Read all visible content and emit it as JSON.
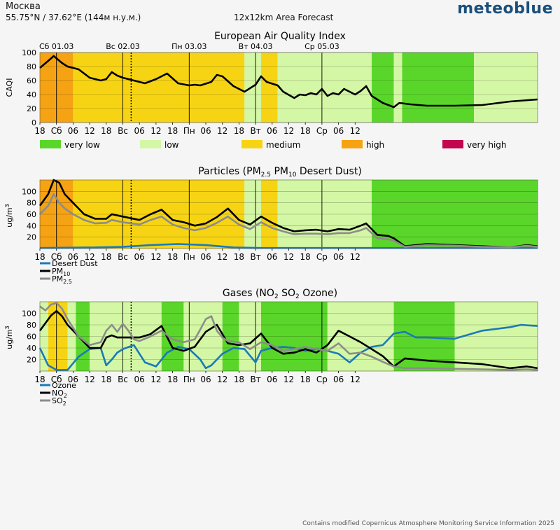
{
  "header": {
    "location": "Москва",
    "coords_prefix": "55.75°N / 37.62°E (144м н.у.м.)",
    "forecast_label": "12x12km Area Forecast",
    "logo": "meteoblue"
  },
  "footer": {
    "credit": "Contains modified Copernicus Atmosphere Monitoring Service Information 2025"
  },
  "colors": {
    "very_low": "#5ad62a",
    "low": "#d4f7a5",
    "medium": "#f7d413",
    "high": "#f5a312",
    "very_high": "#c2064f",
    "black": "#000000",
    "grey": "#8c8c8c",
    "blue": "#1a7ab8"
  },
  "x_axis": {
    "tick_labels": [
      "18",
      "Сб",
      "06",
      "12",
      "18",
      "Вс",
      "06",
      "12",
      "18",
      "Пн",
      "06",
      "12",
      "18",
      "Вт",
      "06",
      "12",
      "18",
      "Ср",
      "06",
      "12"
    ],
    "day_labels": [
      "Сб 01.03",
      "Вс 02.03",
      "Пн 03.03",
      "Вт 04.03",
      "Ср 05.03"
    ],
    "now_hour": 33
  },
  "chart_data": [
    {
      "type": "line",
      "title": "European Air Quality Index",
      "ylabel": "CAQI",
      "ylim": [
        0,
        100
      ],
      "yticks": [
        0,
        20,
        40,
        60,
        80,
        100
      ],
      "background_bands": [
        {
          "from": 0,
          "to": 12,
          "level": "high"
        },
        {
          "from": 12,
          "to": 74,
          "level": "medium"
        },
        {
          "from": 74,
          "to": 80,
          "level": "low"
        },
        {
          "from": 80,
          "to": 86,
          "level": "medium"
        },
        {
          "from": 86,
          "to": 120,
          "level": "low"
        },
        {
          "from": 120,
          "to": 128,
          "level": "very_low"
        },
        {
          "from": 128,
          "to": 131,
          "level": "low"
        },
        {
          "from": 131,
          "to": 157,
          "level": "very_low"
        },
        {
          "from": 157,
          "to": 180,
          "level": "low"
        }
      ],
      "legend": [
        {
          "label": "very low",
          "color_key": "very_low"
        },
        {
          "label": "low",
          "color_key": "low"
        },
        {
          "label": "medium",
          "color_key": "medium"
        },
        {
          "label": "high",
          "color_key": "high"
        },
        {
          "label": "very high",
          "color_key": "very_high"
        }
      ],
      "series": [
        {
          "color_key": "black",
          "x": [
            0,
            3,
            5,
            8,
            10,
            14,
            18,
            22,
            24,
            26,
            28,
            30,
            34,
            38,
            42,
            46,
            50,
            54,
            56,
            58,
            62,
            64,
            66,
            70,
            74,
            78,
            80,
            82,
            86,
            88,
            92,
            94,
            96,
            98,
            100,
            102,
            104,
            106,
            108,
            110,
            112,
            114,
            116,
            118,
            120,
            124,
            128,
            130,
            134,
            140,
            150,
            160,
            170,
            180
          ],
          "y": [
            78,
            88,
            95,
            85,
            80,
            76,
            64,
            60,
            62,
            72,
            67,
            64,
            60,
            56,
            62,
            70,
            56,
            53,
            54,
            53,
            58,
            68,
            66,
            52,
            44,
            54,
            66,
            58,
            53,
            44,
            35,
            40,
            39,
            42,
            40,
            48,
            38,
            42,
            40,
            48,
            44,
            40,
            45,
            52,
            38,
            28,
            22,
            28,
            26,
            24,
            24,
            25,
            30,
            33
          ]
        }
      ]
    },
    {
      "type": "line",
      "title": "Particles (PM2.5 PM10 Desert Dust)",
      "ylabel": "ug/m3",
      "ylim": [
        0,
        120
      ],
      "yticks": [
        20,
        40,
        60,
        80,
        100
      ],
      "background_bands": [
        {
          "from": 0,
          "to": 12,
          "level": "high"
        },
        {
          "from": 12,
          "to": 74,
          "level": "medium"
        },
        {
          "from": 74,
          "to": 80,
          "level": "low"
        },
        {
          "from": 80,
          "to": 86,
          "level": "medium"
        },
        {
          "from": 86,
          "to": 120,
          "level": "low"
        },
        {
          "from": 120,
          "to": 180,
          "level": "very_low"
        }
      ],
      "legend": [
        {
          "label": "Desert Dust",
          "color_key": "blue"
        },
        {
          "label": "PM10",
          "color_key": "black"
        },
        {
          "label": "PM2.5",
          "color_key": "grey"
        }
      ],
      "series": [
        {
          "name": "Desert Dust",
          "color_key": "blue",
          "x": [
            0,
            20,
            30,
            40,
            50,
            60,
            70,
            80,
            90,
            100,
            110,
            120,
            130,
            140,
            150,
            160,
            170,
            180
          ],
          "y": [
            1,
            2,
            3,
            6,
            8,
            6,
            2,
            1,
            1,
            1,
            1,
            1,
            1,
            1,
            1,
            1,
            1,
            1
          ]
        },
        {
          "name": "PM10",
          "color_key": "black",
          "x": [
            0,
            3,
            5,
            7,
            9,
            12,
            16,
            20,
            24,
            26,
            30,
            36,
            40,
            44,
            48,
            52,
            56,
            60,
            64,
            68,
            72,
            76,
            80,
            84,
            88,
            92,
            96,
            100,
            104,
            108,
            112,
            116,
            118,
            122,
            126,
            128,
            132,
            140,
            150,
            160,
            170,
            176,
            180
          ],
          "y": [
            75,
            95,
            125,
            115,
            95,
            80,
            60,
            52,
            52,
            60,
            56,
            50,
            60,
            68,
            50,
            46,
            40,
            44,
            55,
            70,
            50,
            42,
            56,
            45,
            36,
            30,
            32,
            33,
            30,
            34,
            33,
            40,
            44,
            24,
            22,
            18,
            4,
            8,
            6,
            4,
            2,
            6,
            4
          ]
        },
        {
          "name": "PM2.5",
          "color_key": "grey",
          "x": [
            0,
            3,
            5,
            7,
            9,
            12,
            16,
            20,
            24,
            26,
            30,
            36,
            40,
            44,
            48,
            52,
            56,
            60,
            64,
            68,
            72,
            76,
            80,
            84,
            88,
            92,
            96,
            100,
            104,
            108,
            112,
            116,
            118,
            122,
            126,
            128,
            132,
            140,
            150,
            160,
            170,
            176,
            180
          ],
          "y": [
            60,
            75,
            95,
            80,
            70,
            60,
            50,
            44,
            45,
            50,
            46,
            42,
            50,
            56,
            42,
            36,
            32,
            36,
            45,
            56,
            42,
            34,
            46,
            36,
            30,
            25,
            26,
            26,
            25,
            27,
            27,
            32,
            36,
            18,
            16,
            14,
            3,
            6,
            5,
            3,
            2,
            5,
            3
          ]
        }
      ]
    },
    {
      "type": "line",
      "title": "Gases (NO2 SO2 Ozone)",
      "ylabel": "ug/m3",
      "ylim": [
        0,
        120
      ],
      "yticks": [
        20,
        40,
        60,
        80,
        100
      ],
      "background_bands": [
        {
          "from": 0,
          "to": 3,
          "level": "low"
        },
        {
          "from": 3,
          "to": 10,
          "level": "medium"
        },
        {
          "from": 10,
          "to": 13,
          "level": "low"
        },
        {
          "from": 13,
          "to": 18,
          "level": "very_low"
        },
        {
          "from": 18,
          "to": 44,
          "level": "low"
        },
        {
          "from": 44,
          "to": 52,
          "level": "very_low"
        },
        {
          "from": 52,
          "to": 66,
          "level": "low"
        },
        {
          "from": 66,
          "to": 72,
          "level": "very_low"
        },
        {
          "from": 72,
          "to": 80,
          "level": "low"
        },
        {
          "from": 80,
          "to": 104,
          "level": "very_low"
        },
        {
          "from": 104,
          "to": 128,
          "level": "low"
        },
        {
          "from": 128,
          "to": 150,
          "level": "very_low"
        },
        {
          "from": 150,
          "to": 180,
          "level": "low"
        }
      ],
      "legend": [
        {
          "label": "Ozone",
          "color_key": "blue"
        },
        {
          "label": "NO2",
          "color_key": "black"
        },
        {
          "label": "SO2",
          "color_key": "grey"
        }
      ],
      "series": [
        {
          "name": "Ozone",
          "color_key": "blue",
          "x": [
            0,
            3,
            6,
            10,
            14,
            18,
            22,
            24,
            26,
            28,
            30,
            34,
            38,
            42,
            46,
            50,
            54,
            58,
            60,
            62,
            66,
            70,
            74,
            78,
            80,
            84,
            88,
            92,
            96,
            100,
            104,
            108,
            112,
            116,
            120,
            124,
            128,
            132,
            136,
            140,
            150,
            160,
            170,
            174,
            180
          ],
          "y": [
            40,
            10,
            2,
            2,
            25,
            38,
            40,
            10,
            20,
            32,
            38,
            45,
            15,
            8,
            32,
            42,
            38,
            20,
            5,
            10,
            30,
            40,
            38,
            15,
            35,
            40,
            42,
            40,
            35,
            38,
            35,
            30,
            15,
            32,
            42,
            45,
            65,
            68,
            58,
            58,
            56,
            70,
            76,
            80,
            78
          ]
        },
        {
          "name": "NO2",
          "color_key": "black",
          "x": [
            0,
            4,
            6,
            8,
            10,
            14,
            18,
            22,
            24,
            26,
            28,
            32,
            36,
            40,
            44,
            48,
            52,
            56,
            60,
            64,
            68,
            72,
            76,
            80,
            84,
            88,
            92,
            96,
            100,
            104,
            108,
            112,
            116,
            120,
            124,
            128,
            132,
            140,
            150,
            160,
            170,
            176,
            180
          ],
          "y": [
            70,
            96,
            104,
            95,
            80,
            60,
            40,
            40,
            58,
            62,
            58,
            58,
            58,
            64,
            78,
            40,
            35,
            42,
            68,
            80,
            48,
            45,
            48,
            65,
            40,
            30,
            32,
            38,
            32,
            45,
            70,
            60,
            50,
            38,
            26,
            8,
            22,
            18,
            15,
            12,
            5,
            8,
            5
          ]
        },
        {
          "name": "SO2",
          "color_key": "grey",
          "x": [
            0,
            2,
            4,
            6,
            8,
            10,
            14,
            18,
            22,
            24,
            26,
            28,
            30,
            32,
            34,
            36,
            40,
            44,
            48,
            52,
            56,
            58,
            60,
            62,
            64,
            66,
            68,
            72,
            76,
            80,
            84,
            88,
            92,
            96,
            100,
            104,
            108,
            112,
            116,
            120,
            124,
            128,
            132,
            140,
            150,
            160,
            170,
            176,
            180
          ],
          "y": [
            112,
            105,
            115,
            118,
            108,
            90,
            60,
            45,
            50,
            70,
            80,
            68,
            82,
            70,
            55,
            52,
            60,
            70,
            55,
            50,
            55,
            72,
            90,
            95,
            70,
            58,
            52,
            50,
            38,
            50,
            45,
            35,
            38,
            42,
            38,
            35,
            48,
            30,
            32,
            25,
            16,
            8,
            5,
            5,
            4,
            3,
            2,
            3,
            2
          ]
        }
      ]
    }
  ]
}
